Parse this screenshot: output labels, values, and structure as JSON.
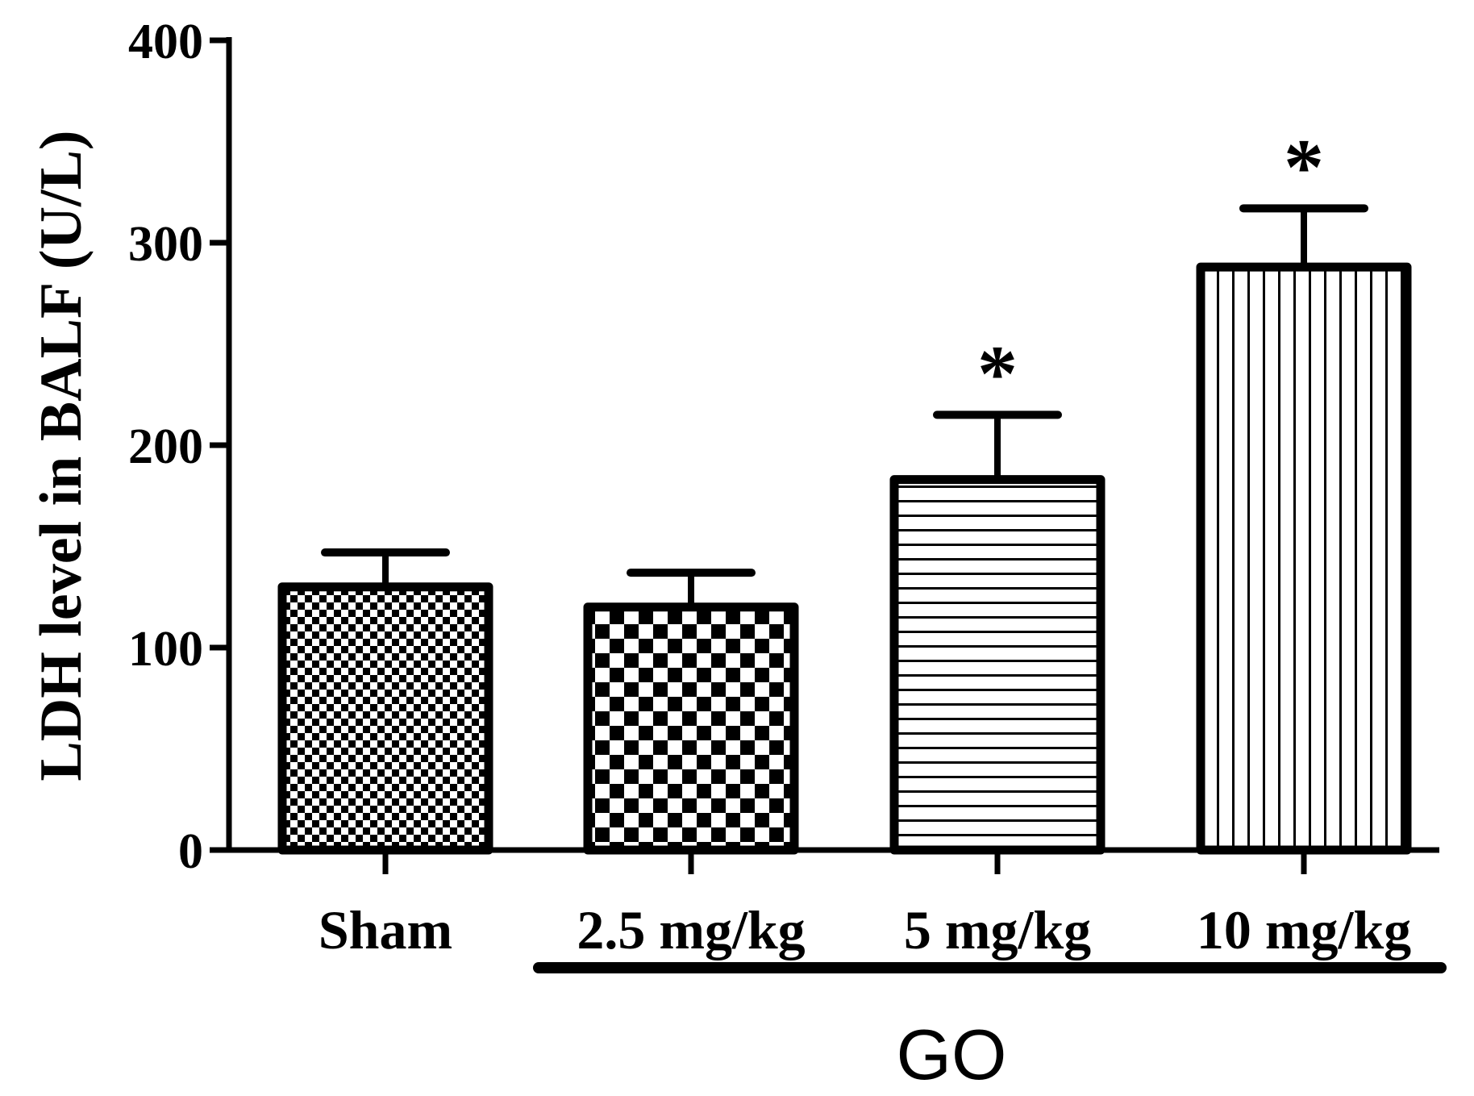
{
  "chart_data": {
    "type": "bar",
    "title": "",
    "xlabel": "",
    "ylabel": "LDH level in BALF (U/L)",
    "ylim": [
      0,
      400
    ],
    "yticks": [
      0,
      100,
      200,
      300,
      400
    ],
    "categories": [
      "Sham",
      "2.5 mg/kg",
      "5 mg/kg",
      "10 mg/kg"
    ],
    "values": [
      130,
      120,
      183,
      288
    ],
    "errors": [
      17,
      17,
      32,
      29
    ],
    "significance": [
      "",
      "",
      "*",
      "*"
    ],
    "patterns": [
      "fine-checker",
      "coarse-checker",
      "horizontal-stripes",
      "vertical-stripes"
    ],
    "group_label": {
      "text": "GO",
      "spans": [
        "2.5 mg/kg",
        "5 mg/kg",
        "10 mg/kg"
      ]
    },
    "colors": {
      "ink": "#000000",
      "fill": "#ffffff"
    }
  }
}
